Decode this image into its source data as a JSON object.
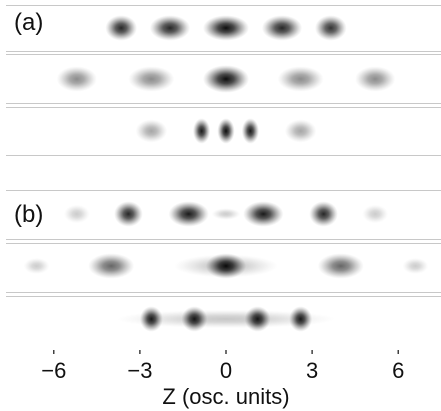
{
  "figure": {
    "panel_a_label": "(a)",
    "panel_b_label": "(b)",
    "xlabel": "Z (osc. units)",
    "tick_labels": [
      "−6",
      "−3",
      "0",
      "3",
      "6"
    ]
  },
  "chart_data": {
    "type": "heatmap",
    "xlabel": "Z (osc. units)",
    "xlim": [
      -7.4,
      7.4
    ],
    "xticks": [
      -6,
      -3,
      0,
      3,
      6
    ],
    "panels": [
      {
        "label": "(a)",
        "rows": [
          {
            "blobs": [
              {
                "z": -3.65,
                "width": 0.55,
                "height": 0.55,
                "peak": 0.85
              },
              {
                "z": -1.95,
                "width": 0.7,
                "height": 0.55,
                "peak": 0.85
              },
              {
                "z": 0.0,
                "width": 0.8,
                "height": 0.55,
                "peak": 0.95
              },
              {
                "z": 1.95,
                "width": 0.7,
                "height": 0.55,
                "peak": 0.85
              },
              {
                "z": 3.65,
                "width": 0.55,
                "height": 0.55,
                "peak": 0.8
              }
            ]
          },
          {
            "blobs": [
              {
                "z": -5.2,
                "width": 0.7,
                "height": 0.55,
                "peak": 0.45
              },
              {
                "z": -2.6,
                "width": 0.8,
                "height": 0.55,
                "peak": 0.45
              },
              {
                "z": 0.0,
                "width": 0.8,
                "height": 0.6,
                "peak": 0.95
              },
              {
                "z": 2.6,
                "width": 0.8,
                "height": 0.55,
                "peak": 0.45
              },
              {
                "z": 5.2,
                "width": 0.7,
                "height": 0.55,
                "peak": 0.45
              }
            ]
          },
          {
            "blobs": [
              {
                "z": -2.6,
                "width": 0.55,
                "height": 0.5,
                "peak": 0.35
              },
              {
                "z": -0.85,
                "width": 0.3,
                "height": 0.55,
                "peak": 0.9
              },
              {
                "z": 0.0,
                "width": 0.3,
                "height": 0.55,
                "peak": 0.95
              },
              {
                "z": 0.85,
                "width": 0.3,
                "height": 0.55,
                "peak": 0.9
              },
              {
                "z": 2.6,
                "width": 0.55,
                "height": 0.5,
                "peak": 0.35
              }
            ]
          }
        ]
      },
      {
        "label": "(b)",
        "rows": [
          {
            "blobs": [
              {
                "z": -5.2,
                "width": 0.45,
                "height": 0.4,
                "peak": 0.2
              },
              {
                "z": -3.4,
                "width": 0.5,
                "height": 0.55,
                "peak": 0.85
              },
              {
                "z": -1.3,
                "width": 0.7,
                "height": 0.55,
                "peak": 0.9
              },
              {
                "z": 0.0,
                "width": 0.5,
                "height": 0.25,
                "peak": 0.2
              },
              {
                "z": 1.3,
                "width": 0.7,
                "height": 0.55,
                "peak": 0.9
              },
              {
                "z": 3.4,
                "width": 0.5,
                "height": 0.55,
                "peak": 0.85
              },
              {
                "z": 5.2,
                "width": 0.45,
                "height": 0.4,
                "peak": 0.2
              }
            ]
          },
          {
            "blobs": [
              {
                "z": -6.6,
                "width": 0.45,
                "height": 0.35,
                "peak": 0.2
              },
              {
                "z": -4.0,
                "width": 0.8,
                "height": 0.55,
                "peak": 0.6
              },
              {
                "z": 0.0,
                "width": 1.8,
                "height": 0.5,
                "peak": 0.25
              },
              {
                "z": 0.0,
                "width": 0.7,
                "height": 0.55,
                "peak": 0.95
              },
              {
                "z": 4.0,
                "width": 0.8,
                "height": 0.55,
                "peak": 0.6
              },
              {
                "z": 6.6,
                "width": 0.45,
                "height": 0.35,
                "peak": 0.2
              }
            ]
          },
          {
            "blobs": [
              {
                "z": 0.0,
                "width": 3.8,
                "height": 0.4,
                "peak": 0.22
              },
              {
                "z": -2.6,
                "width": 0.4,
                "height": 0.55,
                "peak": 0.9
              },
              {
                "z": -1.1,
                "width": 0.45,
                "height": 0.55,
                "peak": 0.9
              },
              {
                "z": 1.1,
                "width": 0.45,
                "height": 0.55,
                "peak": 0.9
              },
              {
                "z": 2.6,
                "width": 0.4,
                "height": 0.55,
                "peak": 0.9
              }
            ]
          }
        ]
      }
    ]
  }
}
